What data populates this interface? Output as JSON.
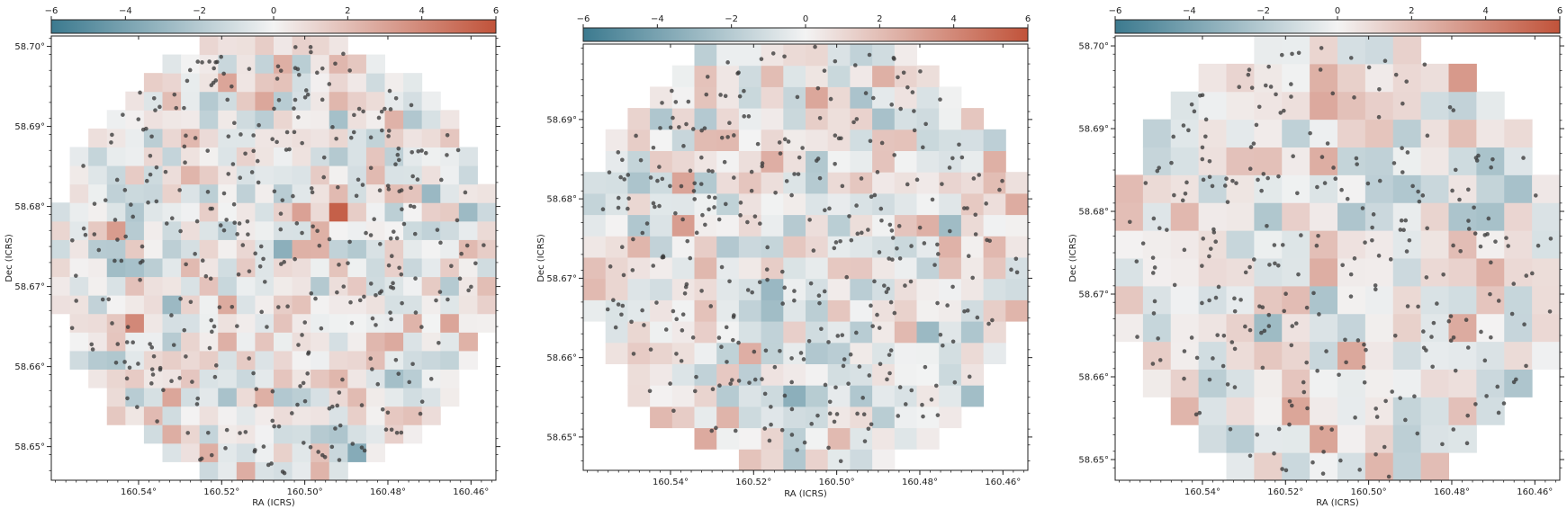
{
  "chart_data": [
    {
      "type": "heatmap",
      "panel": "left",
      "colorbar": {
        "cmap": "diverging blue-white-red",
        "vmin": -6,
        "vmax": 6,
        "ticks": [
          "−6",
          "−4",
          "−2",
          "0",
          "2",
          "4",
          "6"
        ],
        "placement": "top"
      },
      "xlabel": "RA (ICRS)",
      "ylabel": "Dec (ICRS)",
      "xlim": [
        160.561,
        160.454
      ],
      "ylim": [
        58.6458,
        58.7013
      ],
      "xticks": [
        160.54,
        160.52,
        160.5,
        160.48,
        160.46
      ],
      "xticklabels": [
        "160.54°",
        "160.52°",
        "160.50°",
        "160.48°",
        "160.46°"
      ],
      "yticks": [
        58.65,
        58.66,
        58.67,
        58.68,
        58.69,
        58.7
      ],
      "yticklabels": [
        "58.65°",
        "58.66°",
        "58.67°",
        "58.68°",
        "58.69°",
        "58.70°"
      ],
      "grid": {
        "nx": 24,
        "ny": 24,
        "ra_range": [
          160.561,
          160.454
        ],
        "dec_range": [
          58.6458,
          58.7013
        ],
        "seed": 11,
        "hot": [
          [
            4,
            2,
            6
          ],
          [
            15,
            9,
            5.5
          ],
          [
            4,
            15,
            4
          ]
        ]
      },
      "footprint": {
        "center": [
          160.507,
          58.6735
        ],
        "radius_deg_dec": 0.0275
      },
      "scatter": {
        "n": 380,
        "seed": 101,
        "color": "#3a3a3a"
      }
    },
    {
      "type": "heatmap",
      "panel": "middle",
      "colorbar": {
        "cmap": "diverging blue-white-red",
        "vmin": -6,
        "vmax": 6,
        "ticks": [
          "−6",
          "−4",
          "−2",
          "0",
          "2",
          "4",
          "6"
        ],
        "placement": "top"
      },
      "xlabel": "RA (ICRS)",
      "ylabel": "Dec (ICRS)",
      "xlim": [
        160.561,
        160.454
      ],
      "ylim": [
        58.6458,
        58.6995
      ],
      "xticks": [
        160.54,
        160.52,
        160.5,
        160.48,
        160.46
      ],
      "xticklabels": [
        "160.54°",
        "160.52°",
        "160.50°",
        "160.48°",
        "160.46°"
      ],
      "yticks": [
        58.65,
        58.66,
        58.67,
        58.68,
        58.69
      ],
      "yticklabels": [
        "58.65°",
        "58.66°",
        "58.67°",
        "58.68°",
        "58.69°"
      ],
      "grid": {
        "nx": 20,
        "ny": 20,
        "ra_range": [
          160.561,
          160.454
        ],
        "dec_range": [
          58.6458,
          58.6995
        ],
        "seed": 23,
        "hot": []
      },
      "footprint": {
        "center": [
          160.507,
          58.6735
        ],
        "radius_deg_dec": 0.0275
      },
      "scatter": {
        "n": 360,
        "seed": 202,
        "color": "#3a3a3a"
      }
    },
    {
      "type": "heatmap",
      "panel": "right",
      "colorbar": {
        "cmap": "diverging blue-white-red",
        "vmin": -6,
        "vmax": 6,
        "ticks": [
          "−6",
          "−4",
          "−2",
          "0",
          "2",
          "4",
          "6"
        ],
        "placement": "top"
      },
      "xlabel": "RA (ICRS)",
      "ylabel": "Dec (ICRS)",
      "xlim": [
        160.561,
        160.454
      ],
      "ylim": [
        58.6475,
        58.7012
      ],
      "xticks": [
        160.54,
        160.52,
        160.5,
        160.48,
        160.46
      ],
      "xticklabels": [
        "160.54°",
        "160.52°",
        "160.50°",
        "160.48°",
        "160.46°"
      ],
      "yticks": [
        58.65,
        58.66,
        58.67,
        58.68,
        58.69,
        58.7
      ],
      "yticklabels": [
        "58.65°",
        "58.66°",
        "58.67°",
        "58.68°",
        "58.69°",
        "58.70°"
      ],
      "grid": {
        "nx": 16,
        "ny": 16,
        "ra_range": [
          160.561,
          160.454
        ],
        "dec_range": [
          58.6475,
          58.7012
        ],
        "seed": 37,
        "hot": []
      },
      "footprint": {
        "center": [
          160.507,
          58.6735
        ],
        "radius_deg_dec": 0.0275
      },
      "scatter": {
        "n": 300,
        "seed": 303,
        "color": "#3a3a3a"
      }
    }
  ],
  "colors": {
    "neg": "#3c7a8f",
    "mid": "#f3f3f3",
    "pos": "#c1533a",
    "frame": "#222222"
  }
}
